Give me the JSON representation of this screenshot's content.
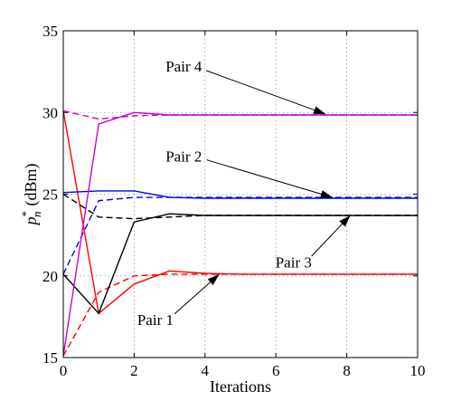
{
  "chart_data": {
    "type": "line",
    "title": "",
    "xlabel": "Iterations",
    "ylabel_base": "p",
    "ylabel_sub": "n",
    "ylabel_sup": "*",
    "ylabel_unit": "(dBm)",
    "xlim": [
      0,
      10
    ],
    "ylim": [
      15,
      35
    ],
    "xticks": [
      0,
      2,
      4,
      6,
      8,
      10
    ],
    "yticks": [
      15,
      20,
      25,
      30,
      35
    ],
    "grid": true,
    "series": [
      {
        "color": "#ff0000",
        "dash": "solid",
        "x": [
          0,
          1,
          2,
          3,
          4,
          5,
          6,
          7,
          8,
          9,
          10
        ],
        "y": [
          30.1,
          17.7,
          19.5,
          20.3,
          20.15,
          20.1,
          20.1,
          20.1,
          20.1,
          20.1,
          20.1
        ]
      },
      {
        "color": "#ff0000",
        "dash": "dashed",
        "x": [
          0,
          1,
          2,
          3,
          4,
          5,
          6,
          7,
          8,
          9,
          10
        ],
        "y": [
          15.1,
          19.0,
          20.0,
          20.1,
          20.1,
          20.1,
          20.1,
          20.1,
          20.1,
          20.1,
          20.1
        ]
      },
      {
        "color": "#0000ff",
        "dash": "solid",
        "x": [
          0,
          1,
          2,
          3,
          4,
          5,
          6,
          7,
          8,
          9,
          10
        ],
        "y": [
          25.1,
          25.2,
          25.2,
          24.8,
          24.75,
          24.75,
          24.75,
          24.75,
          24.75,
          24.75,
          24.75
        ]
      },
      {
        "color": "#0000ff",
        "dash": "dashed",
        "x": [
          0,
          1,
          2,
          3,
          4,
          5,
          6,
          7,
          8,
          9,
          10
        ],
        "y": [
          20.1,
          24.6,
          24.8,
          24.8,
          24.8,
          24.8,
          24.8,
          24.8,
          24.8,
          24.8,
          24.8
        ]
      },
      {
        "color": "#000000",
        "dash": "solid",
        "x": [
          0,
          1,
          2,
          3,
          4,
          5,
          6,
          7,
          8,
          9,
          10
        ],
        "y": [
          20.1,
          17.7,
          23.3,
          23.8,
          23.7,
          23.7,
          23.7,
          23.7,
          23.7,
          23.7,
          23.7
        ]
      },
      {
        "color": "#000000",
        "dash": "dashed",
        "x": [
          0,
          1,
          2,
          3,
          4,
          5,
          6,
          7,
          8,
          9,
          10
        ],
        "y": [
          25.0,
          23.6,
          23.5,
          23.6,
          23.7,
          23.7,
          23.7,
          23.7,
          23.7,
          23.7,
          23.7
        ]
      },
      {
        "color": "#cc00cc",
        "dash": "solid",
        "x": [
          0,
          1,
          2,
          3,
          4,
          5,
          6,
          7,
          8,
          9,
          10
        ],
        "y": [
          15.1,
          29.3,
          30.0,
          29.85,
          29.85,
          29.85,
          29.85,
          29.85,
          29.85,
          29.85,
          29.85
        ]
      },
      {
        "color": "#cc00cc",
        "dash": "dashed",
        "x": [
          0,
          1,
          2,
          3,
          4,
          5,
          6,
          7,
          8,
          9,
          10
        ],
        "y": [
          30.1,
          29.6,
          29.8,
          29.85,
          29.85,
          29.85,
          29.85,
          29.85,
          29.85,
          29.85,
          29.85
        ]
      }
    ],
    "annotations": [
      {
        "text": "Pair 4",
        "text_x": 3.4,
        "text_y": 32.5,
        "tip_x": 7.4,
        "tip_y": 29.9
      },
      {
        "text": "Pair 2",
        "text_x": 3.4,
        "text_y": 27.0,
        "tip_x": 7.6,
        "tip_y": 24.8
      },
      {
        "text": "Pair 3",
        "text_x": 6.5,
        "text_y": 20.5,
        "tip_x": 8.1,
        "tip_y": 23.7
      },
      {
        "text": "Pair 1",
        "text_x": 2.6,
        "text_y": 17.0,
        "tip_x": 4.4,
        "tip_y": 20.1
      }
    ]
  }
}
